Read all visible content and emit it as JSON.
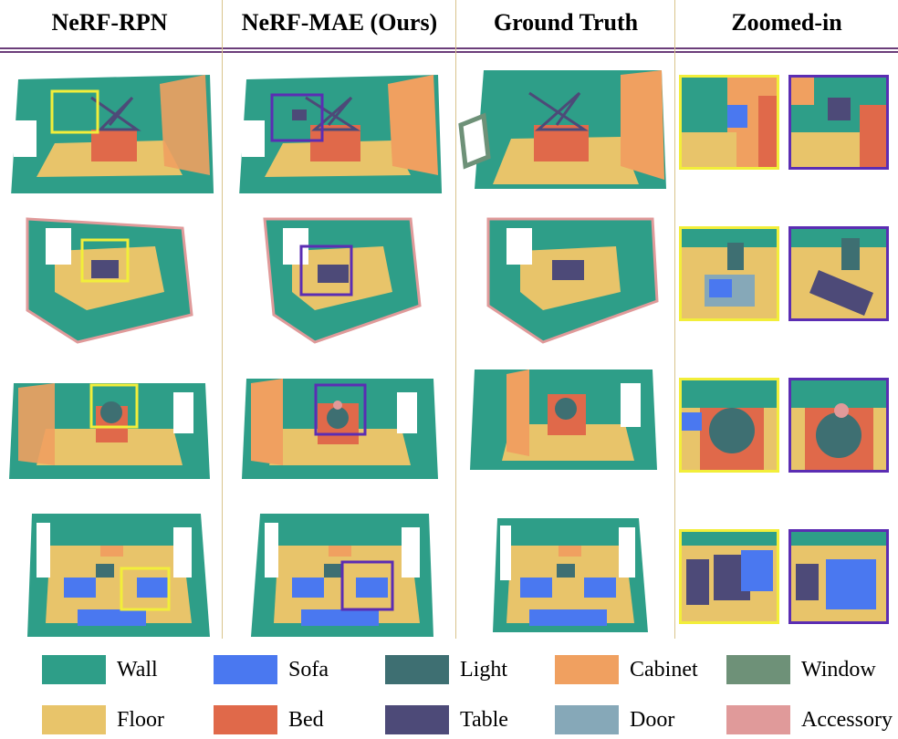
{
  "columns": [
    {
      "title": "NeRF-RPN"
    },
    {
      "title": "NeRF-MAE (Ours)"
    },
    {
      "title": "Ground Truth"
    },
    {
      "title": "Zoomed-in"
    }
  ],
  "legend": [
    {
      "label": "Wall",
      "color": "#2e9e88"
    },
    {
      "label": "Sofa",
      "color": "#4a78f0"
    },
    {
      "label": "Light",
      "color": "#3e6f72"
    },
    {
      "label": "Cabinet",
      "color": "#f0a060"
    },
    {
      "label": "Window",
      "color": "#6e9178"
    },
    {
      "label": "Floor",
      "color": "#e8c46a"
    },
    {
      "label": "Bed",
      "color": "#e0694a"
    },
    {
      "label": "Table",
      "color": "#4d4a78"
    },
    {
      "label": "Door",
      "color": "#86a8b8"
    },
    {
      "label": "Accessory",
      "color": "#e09a9a"
    }
  ],
  "colors": {
    "wall": "#2e9e88",
    "floor": "#e8c46a",
    "bed": "#e0694a",
    "table": "#4d4a78",
    "light": "#3e6f72",
    "sofa": "#4a78f0",
    "cabinet": "#f0a060",
    "door": "#86a8b8",
    "window": "#6e9178",
    "accessory": "#e09a9a",
    "box_rpn": "#f2ee3a",
    "box_mae": "#5b2db3",
    "divider": "#d9c48c",
    "rule": "#6b3d7a"
  }
}
